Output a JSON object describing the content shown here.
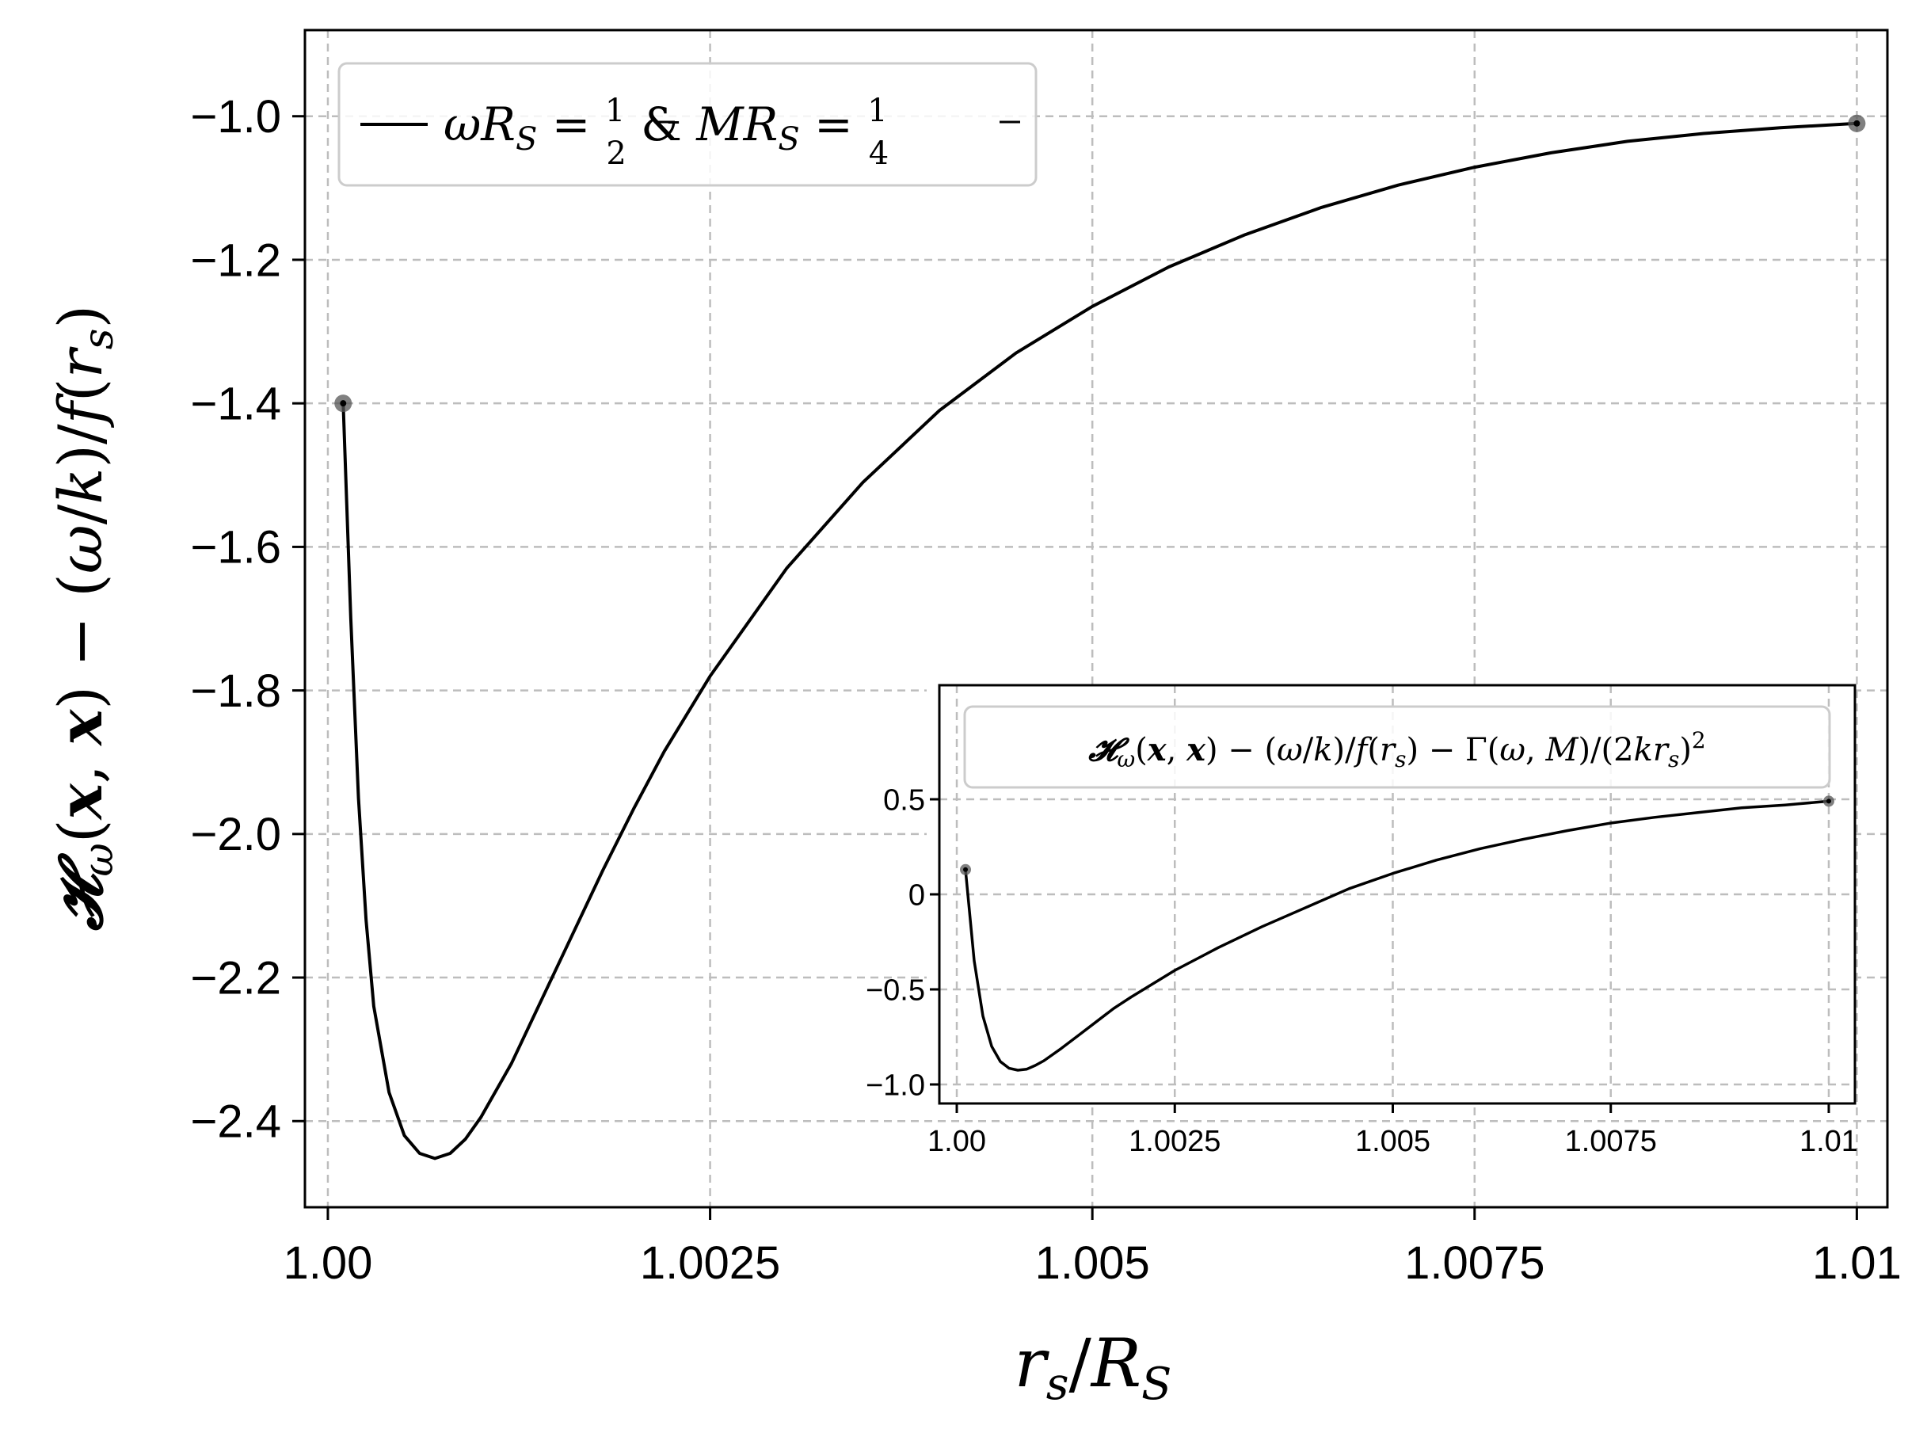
{
  "colors": {
    "line": "#000000",
    "grid": "#bdbdbd",
    "marker_fill": "#555555",
    "axis": "#000000",
    "legend_border": "#cccccc"
  },
  "chart_data": [
    {
      "id": "main",
      "type": "line",
      "xlabel": "r_s/R_S",
      "ylabel": "𝓗_ω(𝒙, 𝒙) − (ω/k)/f(r_s)",
      "xlim": [
        0.99985,
        1.0102
      ],
      "ylim": [
        -2.52,
        -0.88
      ],
      "xticks": [
        1.0,
        1.0025,
        1.005,
        1.0075,
        1.01
      ],
      "xtick_labels": [
        "1.00",
        "1.0025",
        "1.005",
        "1.0075",
        "1.01"
      ],
      "yticks": [
        -1.0,
        -1.2,
        -1.4,
        -1.6,
        -1.8,
        -2.0,
        -2.2,
        -2.4
      ],
      "ytick_labels": [
        "−1.0",
        "−1.2",
        "−1.4",
        "−1.6",
        "−1.8",
        "−2.0",
        "−2.2",
        "−2.4"
      ],
      "grid": true,
      "legend": {
        "placement": "top-left",
        "entries": [
          "ωR_S = 1/2 & MR_S = 1/4"
        ]
      },
      "series": [
        {
          "name": "ωR_S = 1/2 & MR_S = 1/4",
          "x": [
            1.0001,
            1.00015,
            1.0002,
            1.00025,
            1.0003,
            1.0004,
            1.0005,
            1.0006,
            1.0007,
            1.0008,
            1.0009,
            1.001,
            1.0012,
            1.0014,
            1.0016,
            1.0018,
            1.002,
            1.0022,
            1.0025,
            1.003,
            1.0035,
            1.004,
            1.0045,
            1.005,
            1.0055,
            1.006,
            1.0065,
            1.007,
            1.0075,
            1.008,
            1.0085,
            1.009,
            1.0095,
            1.01
          ],
          "y": [
            -1.4,
            -1.7,
            -1.95,
            -2.12,
            -2.24,
            -2.36,
            -2.42,
            -2.445,
            -2.452,
            -2.445,
            -2.425,
            -2.395,
            -2.32,
            -2.23,
            -2.14,
            -2.05,
            -1.965,
            -1.885,
            -1.78,
            -1.63,
            -1.51,
            -1.41,
            -1.33,
            -1.265,
            -1.21,
            -1.165,
            -1.127,
            -1.096,
            -1.071,
            -1.051,
            -1.035,
            -1.024,
            -1.016,
            -1.01
          ]
        }
      ],
      "markers": [
        {
          "x": 1.0001,
          "y": -1.4
        },
        {
          "x": 1.01,
          "y": -1.01
        }
      ]
    },
    {
      "id": "inset",
      "type": "line",
      "xlim": [
        0.9998,
        1.0103
      ],
      "ylim": [
        -1.1,
        1.1
      ],
      "xticks": [
        1.0,
        1.0025,
        1.005,
        1.0075,
        1.01
      ],
      "xtick_labels": [
        "1.00",
        "1.0025",
        "1.005",
        "1.0075",
        "1.01"
      ],
      "yticks": [
        0.5,
        0,
        -0.5,
        -1.0
      ],
      "ytick_labels": [
        "0.5",
        "0",
        "−0.5",
        "−1.0"
      ],
      "grid": true,
      "legend": {
        "placement": "top",
        "entries": [
          "𝓗_ω(𝒙, 𝒙) − (ω/k)/f(r_s) − Γ(ω, M)/(2kr_s)²"
        ]
      },
      "series": [
        {
          "name": "𝓗_ω(𝒙, 𝒙) − (ω/k)/f(r_s) − Γ(ω, M)/(2kr_s)²",
          "x": [
            1.0001,
            1.0002,
            1.0003,
            1.0004,
            1.0005,
            1.0006,
            1.0007,
            1.0008,
            1.0009,
            1.001,
            1.0012,
            1.0014,
            1.0016,
            1.0018,
            1.002,
            1.0025,
            1.003,
            1.0035,
            1.004,
            1.0045,
            1.005,
            1.0055,
            1.006,
            1.0065,
            1.007,
            1.0075,
            1.008,
            1.0085,
            1.009,
            1.0095,
            1.01
          ],
          "y": [
            0.13,
            -0.35,
            -0.64,
            -0.8,
            -0.88,
            -0.915,
            -0.925,
            -0.92,
            -0.9,
            -0.875,
            -0.81,
            -0.74,
            -0.67,
            -0.6,
            -0.54,
            -0.4,
            -0.28,
            -0.17,
            -0.07,
            0.03,
            0.11,
            0.18,
            0.24,
            0.29,
            0.335,
            0.375,
            0.405,
            0.43,
            0.455,
            0.47,
            0.49
          ]
        }
      ],
      "markers": [
        {
          "x": 1.0001,
          "y": 0.13
        },
        {
          "x": 1.01,
          "y": 0.49
        }
      ]
    }
  ]
}
